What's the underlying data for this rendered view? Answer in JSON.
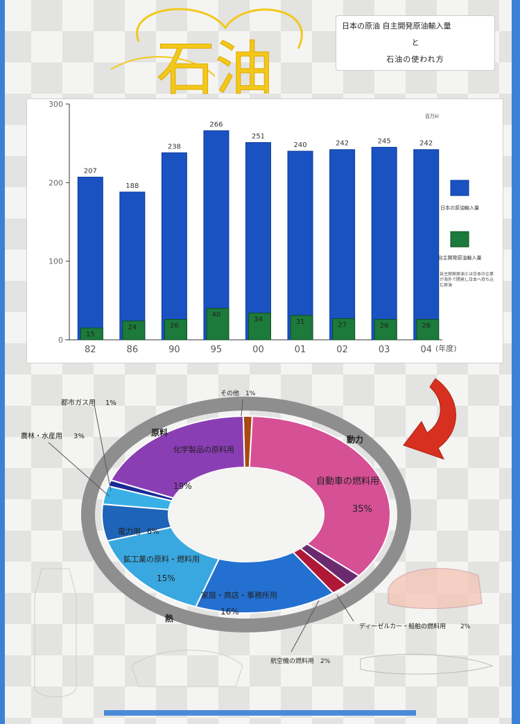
{
  "title": {
    "main": "石油",
    "line1": "日本の原油 自主開発原油輸入量",
    "line2": "と",
    "line3": "石油の使われ方"
  },
  "colors": {
    "import_bar": "#1a52c2",
    "domestic_bar": "#1c7a3a",
    "ring": "#8e8e8e",
    "arrow": "#d83020",
    "title_ink": "#f2c81a"
  },
  "chart_data": {
    "type": "bar",
    "unit": "百万kl",
    "categories": [
      "82",
      "86",
      "90",
      "95",
      "00",
      "01",
      "02",
      "03",
      "04"
    ],
    "xlabel": "(年度)",
    "ylim": [
      0,
      300
    ],
    "yticks": [
      "0",
      "100",
      "200",
      "300"
    ],
    "series": [
      {
        "name": "日本の原油輸入量",
        "values": [
          207,
          188,
          238,
          266,
          251,
          240,
          242,
          245,
          242
        ]
      },
      {
        "name": "自主開発原油輸入量",
        "values": [
          15,
          24,
          26,
          40,
          34,
          31,
          27,
          26,
          26
        ]
      }
    ],
    "note": "自主開発原油とは日本の企業が海外で開発し日本へ持ち込む原油"
  },
  "pie_data": {
    "type": "pie",
    "ring_labels": [
      "動力",
      "原料",
      "熱"
    ],
    "slices": [
      {
        "label": "その他",
        "value": 1,
        "display": "1%"
      },
      {
        "label": "自動車の燃料用",
        "value": 35,
        "display": "35%"
      },
      {
        "label": "ディーゼルカー・船舶の燃料用",
        "value": 2,
        "display": "2%"
      },
      {
        "label": "航空機の燃料用",
        "value": 2,
        "display": "2%"
      },
      {
        "label": "家庭・商店・事務所用",
        "value": 16,
        "display": "16%"
      },
      {
        "label": "鉱工業の原料・燃料用",
        "value": 15,
        "display": "15%"
      },
      {
        "label": "電力用",
        "value": 6,
        "display": "6%"
      },
      {
        "label": "農林・水産用",
        "value": 3,
        "display": "3%"
      },
      {
        "label": "都市ガス用",
        "value": 1,
        "display": "1%"
      },
      {
        "label": "化学製品の原料用",
        "value": 19,
        "display": "19%"
      }
    ]
  }
}
